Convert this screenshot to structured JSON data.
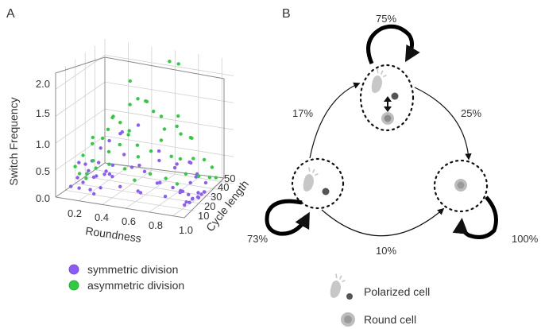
{
  "panel_a": {
    "letter": "A",
    "z_ticks": [
      "0.0",
      "0.5",
      "1.0",
      "1.5",
      "2.0"
    ],
    "x_ticks": [
      "0.2",
      "0.4",
      "0.6",
      "0.8",
      "1.0"
    ],
    "y_ticks": [
      "10",
      "20",
      "30",
      "40",
      "50"
    ],
    "z_label": "Switch Frequency",
    "x_label": "Roundness",
    "y_label": "Cycle length",
    "legend": [
      {
        "label": "symmetric division",
        "color": "#8b5cf6"
      },
      {
        "label": "asymmetric division",
        "color": "#2ecc40"
      }
    ]
  },
  "panel_b": {
    "letter": "B",
    "pct_top_loop": "75%",
    "pct_left_to_top": "17%",
    "pct_top_to_right": "25%",
    "pct_left_loop": "73%",
    "pct_left_to_right": "10%",
    "pct_right_loop": "100%",
    "legend": [
      {
        "label": "Polarized cell",
        "icon": "polarized-cell-icon"
      },
      {
        "label": "Round cell",
        "icon": "round-cell-icon"
      }
    ]
  },
  "chart_data": {
    "type": "scatter",
    "title": "",
    "xlabel": "Roundness",
    "ylabel": "Cycle length",
    "zlabel": "Switch Frequency",
    "xlim": [
      0.0,
      1.1
    ],
    "ylim": [
      0,
      50
    ],
    "zlim": [
      0.0,
      2.3
    ],
    "grid": true,
    "series": [
      {
        "name": "symmetric division",
        "color": "#8b5cf6",
        "points": [
          [
            0.08,
            6,
            0.15
          ],
          [
            0.12,
            8,
            0.3
          ],
          [
            0.15,
            10,
            0.2
          ],
          [
            0.18,
            12,
            0.4
          ],
          [
            0.2,
            15,
            0.25
          ],
          [
            0.22,
            9,
            0.1
          ],
          [
            0.25,
            14,
            0.55
          ],
          [
            0.28,
            18,
            0.35
          ],
          [
            0.3,
            10,
            0.15
          ],
          [
            0.32,
            20,
            0.45
          ],
          [
            0.14,
            7,
            0.6
          ],
          [
            0.1,
            12,
            0.05
          ],
          [
            0.35,
            16,
            0.3
          ],
          [
            0.4,
            22,
            0.65
          ],
          [
            0.45,
            12,
            0.2
          ],
          [
            0.5,
            18,
            0.5
          ],
          [
            0.55,
            25,
            0.35
          ],
          [
            0.6,
            15,
            0.1
          ],
          [
            0.65,
            28,
            0.55
          ],
          [
            0.7,
            20,
            0.25
          ],
          [
            0.3,
            30,
            0.9
          ],
          [
            0.35,
            26,
            1.0
          ],
          [
            0.75,
            32,
            0.4
          ],
          [
            0.8,
            24,
            0.15
          ],
          [
            0.85,
            35,
            0.5
          ],
          [
            0.9,
            30,
            0.2
          ],
          [
            0.95,
            22,
            0.1
          ],
          [
            1.0,
            12,
            0.05
          ],
          [
            1.0,
            14,
            0.08
          ],
          [
            1.01,
            16,
            0.05
          ],
          [
            1.02,
            18,
            0.1
          ],
          [
            1.0,
            20,
            0.06
          ],
          [
            1.03,
            22,
            0.08
          ],
          [
            1.02,
            24,
            0.04
          ],
          [
            1.0,
            26,
            0.1
          ],
          [
            0.98,
            10,
            0.3
          ],
          [
            0.96,
            15,
            0.25
          ],
          [
            0.92,
            28,
            0.6
          ],
          [
            0.88,
            38,
            0.2
          ],
          [
            0.7,
            40,
            0.35
          ],
          [
            0.2,
            22,
            0.7
          ],
          [
            0.24,
            26,
            0.8
          ],
          [
            0.16,
            18,
            0.5
          ],
          [
            0.42,
            34,
            1.05
          ],
          [
            0.48,
            28,
            0.4
          ],
          [
            0.58,
            36,
            0.6
          ],
          [
            0.3,
            14,
            0.35
          ],
          [
            0.12,
            16,
            0.45
          ],
          [
            0.18,
            20,
            0.2
          ],
          [
            0.26,
            8,
            0.05
          ],
          [
            0.36,
            12,
            0.4
          ],
          [
            0.62,
            10,
            0.2
          ],
          [
            0.74,
            18,
            0.3
          ],
          [
            0.82,
            14,
            0.12
          ],
          [
            0.9,
            20,
            0.18
          ],
          [
            0.94,
            32,
            0.35
          ],
          [
            0.98,
            36,
            0.15
          ],
          [
            1.01,
            28,
            0.05
          ],
          [
            1.02,
            30,
            0.07
          ],
          [
            1.0,
            32,
            0.04
          ]
        ]
      },
      {
        "name": "asymmetric division",
        "color": "#2ecc40",
        "points": [
          [
            0.62,
            42,
            2.2
          ],
          [
            0.68,
            44,
            2.15
          ],
          [
            0.45,
            30,
            1.6
          ],
          [
            0.4,
            28,
            1.5
          ],
          [
            0.5,
            32,
            1.55
          ],
          [
            0.55,
            34,
            1.35
          ],
          [
            0.3,
            22,
            1.3
          ],
          [
            0.28,
            20,
            1.1
          ],
          [
            0.35,
            24,
            1.2
          ],
          [
            0.6,
            36,
            1.25
          ],
          [
            0.7,
            40,
            1.05
          ],
          [
            0.75,
            38,
            0.95
          ],
          [
            0.8,
            42,
            0.85
          ],
          [
            0.65,
            30,
            0.9
          ],
          [
            0.2,
            14,
            1.0
          ],
          [
            0.18,
            16,
            0.85
          ],
          [
            0.25,
            18,
            0.95
          ],
          [
            0.15,
            10,
            0.7
          ],
          [
            0.22,
            12,
            0.6
          ],
          [
            0.32,
            16,
            0.75
          ],
          [
            0.38,
            20,
            0.85
          ],
          [
            0.42,
            24,
            1.0
          ],
          [
            0.48,
            26,
            0.8
          ],
          [
            0.52,
            22,
            0.65
          ],
          [
            0.58,
            28,
            0.7
          ],
          [
            0.72,
            32,
            0.6
          ],
          [
            0.78,
            34,
            0.55
          ],
          [
            0.84,
            40,
            0.5
          ],
          [
            0.9,
            44,
            0.45
          ],
          [
            0.95,
            46,
            0.3
          ],
          [
            0.86,
            30,
            0.35
          ],
          [
            0.92,
            36,
            0.25
          ],
          [
            0.98,
            40,
            0.2
          ],
          [
            1.0,
            44,
            0.15
          ],
          [
            0.1,
            8,
            0.5
          ],
          [
            0.12,
            10,
            0.35
          ],
          [
            0.16,
            12,
            0.25
          ],
          [
            0.2,
            8,
            0.4
          ],
          [
            0.26,
            10,
            0.5
          ],
          [
            0.34,
            14,
            0.55
          ],
          [
            0.44,
            18,
            0.45
          ],
          [
            0.54,
            16,
            0.3
          ],
          [
            0.64,
            20,
            0.4
          ],
          [
            0.74,
            24,
            0.3
          ],
          [
            0.82,
            26,
            0.2
          ],
          [
            0.66,
            46,
            1.15
          ],
          [
            0.46,
            38,
            1.45
          ],
          [
            0.36,
            32,
            0.95
          ],
          [
            0.56,
            44,
            0.9
          ],
          [
            0.76,
            48,
            0.75
          ],
          [
            0.3,
            40,
            1.75
          ],
          [
            0.24,
            30,
            1.2
          ]
        ]
      }
    ]
  }
}
